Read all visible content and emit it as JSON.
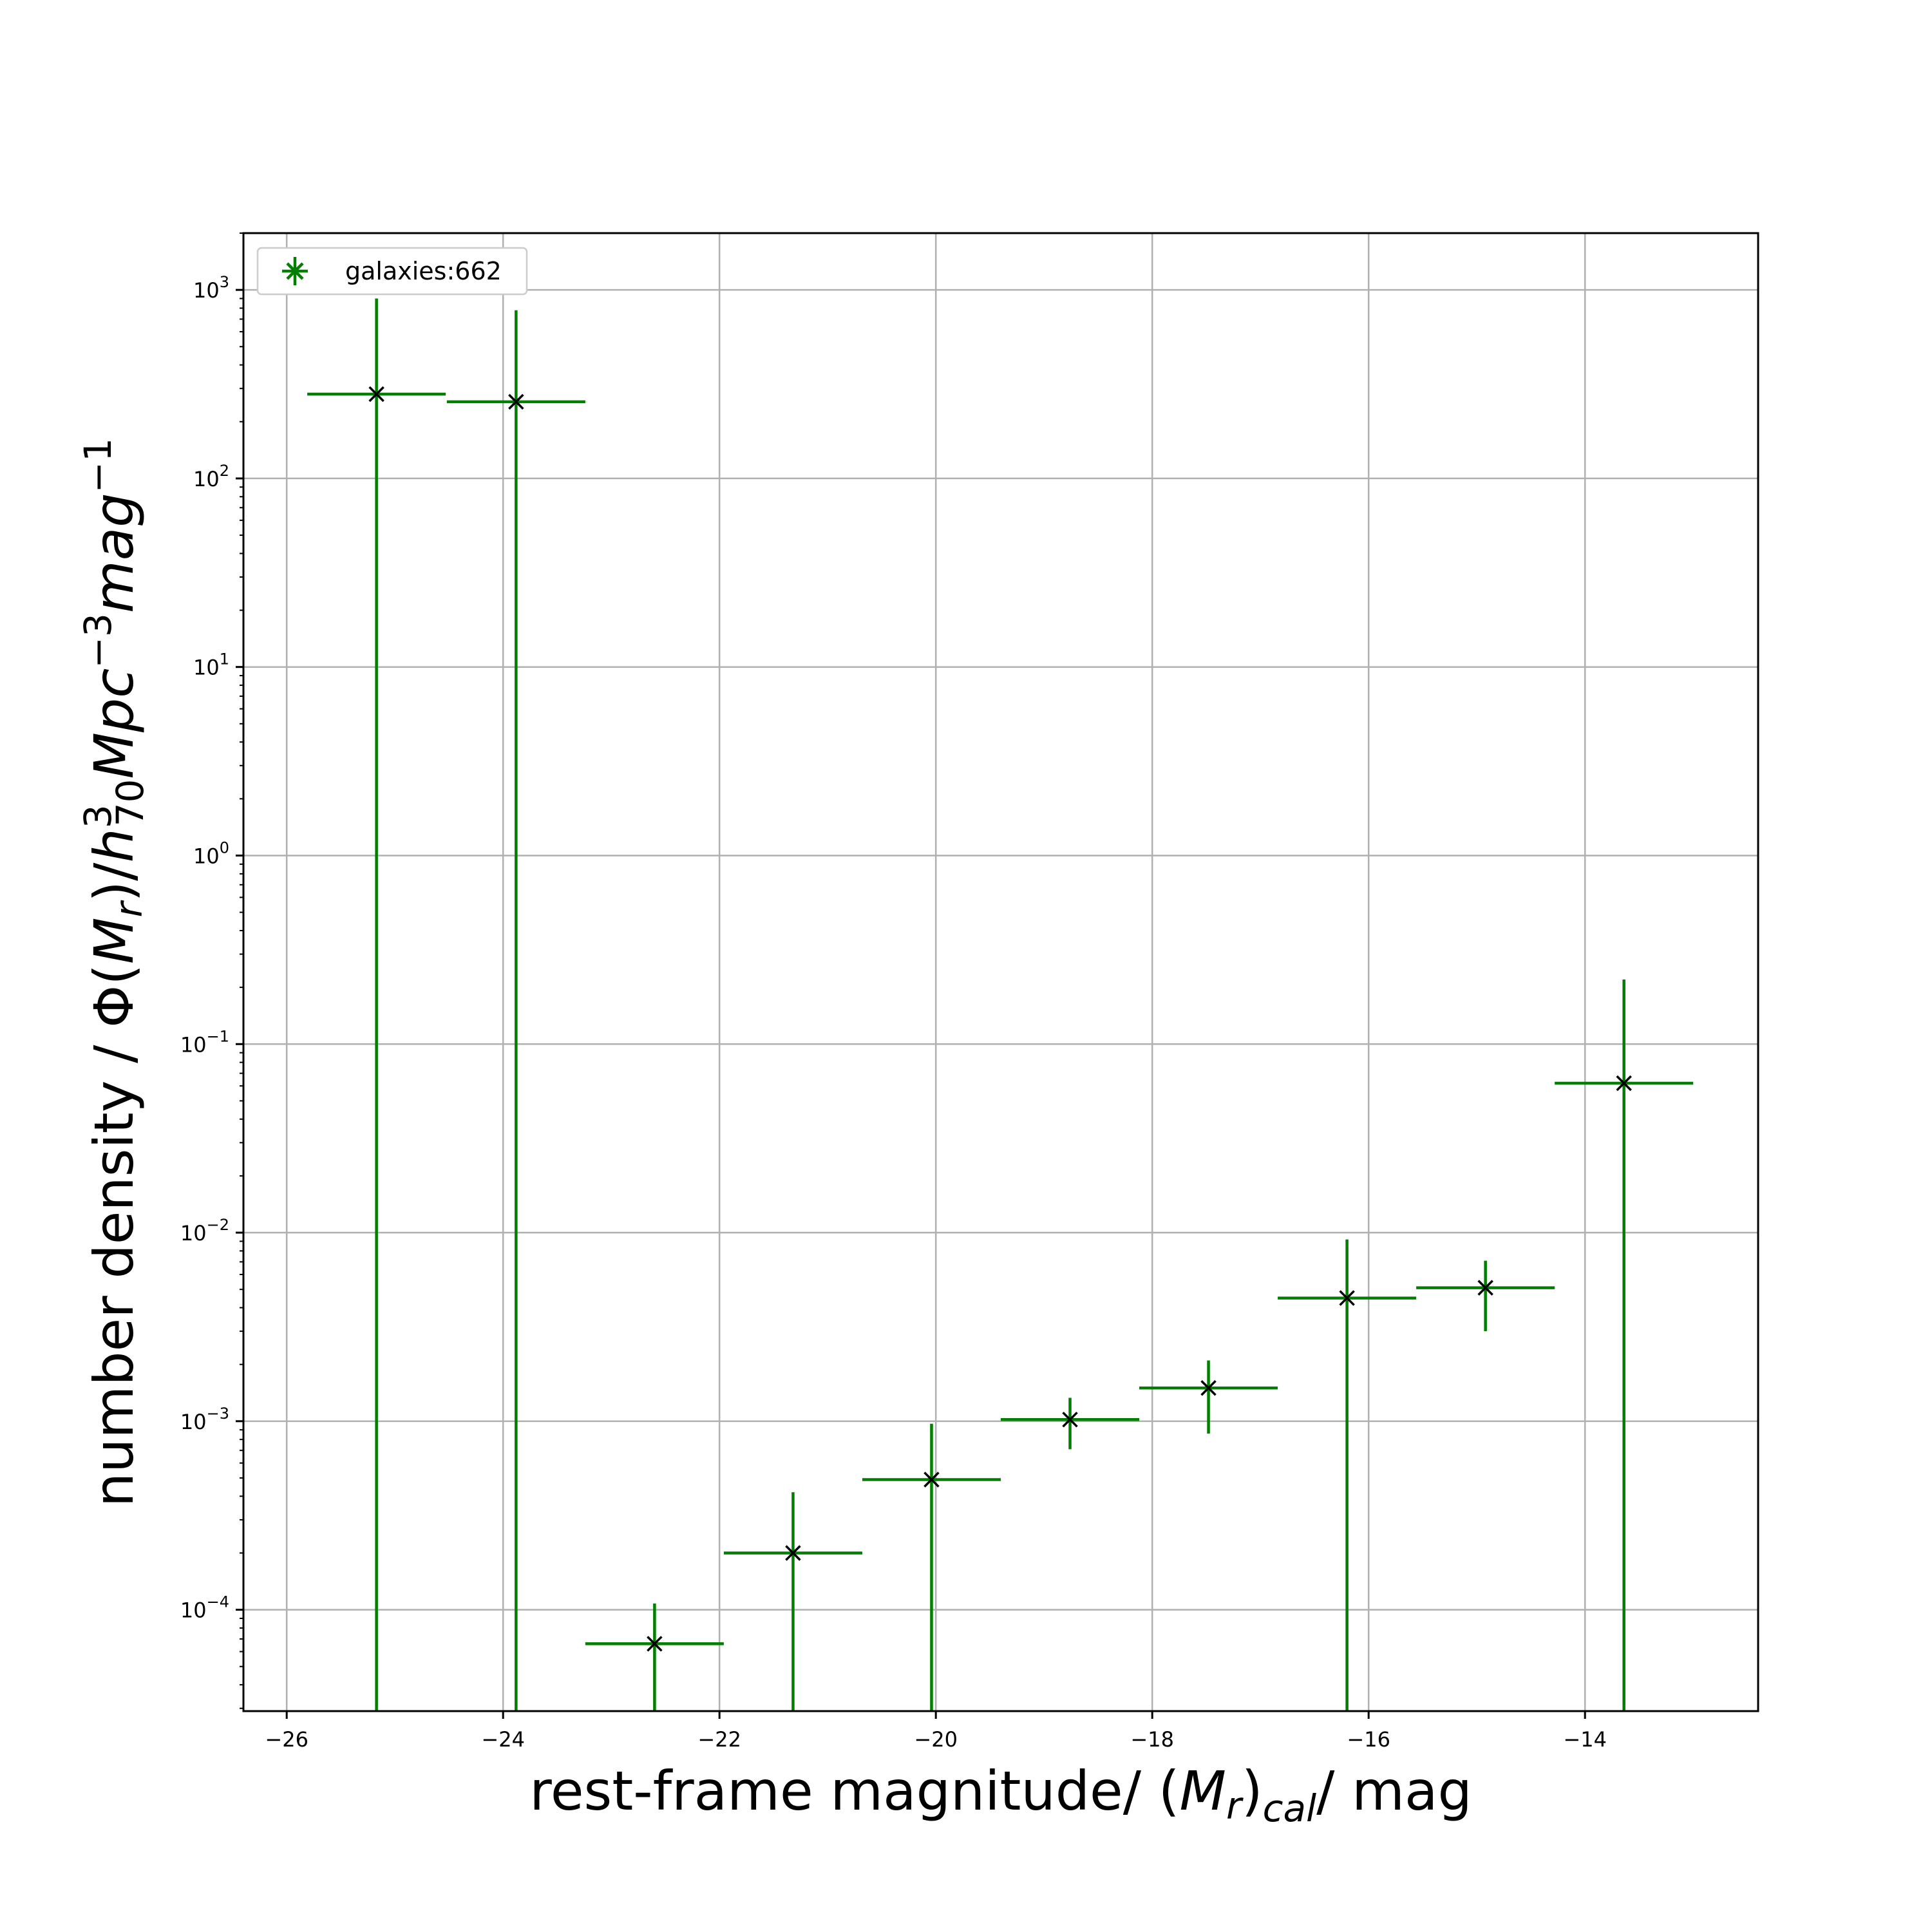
{
  "chart_data": {
    "type": "scatter",
    "subtype": "errorbar",
    "title": "",
    "xlabel": "rest-frame magnitude/ (M_r)_cal/ mag",
    "ylabel": "number density / Φ(M_r)/h_70^3 Mpc^-3 mag^-1",
    "xlim": [
      -26.4,
      -12.4
    ],
    "ylim": [
      2.9e-05,
      2000
    ],
    "yscale": "log",
    "grid": true,
    "legend_position": "upper-left",
    "x_ticks": [
      -26,
      -24,
      -22,
      -20,
      -18,
      -16,
      -14
    ],
    "x_tick_labels": [
      "−26",
      "−24",
      "−22",
      "−20",
      "−18",
      "−16",
      "−14"
    ],
    "y_ticks": [
      {
        "value": 0.0001,
        "mantissa": "10",
        "exponent": "−4"
      },
      {
        "value": 0.001,
        "mantissa": "10",
        "exponent": "−3"
      },
      {
        "value": 0.01,
        "mantissa": "10",
        "exponent": "−2"
      },
      {
        "value": 0.1,
        "mantissa": "10",
        "exponent": "−1"
      },
      {
        "value": 1,
        "mantissa": "10",
        "exponent": "0"
      },
      {
        "value": 10,
        "mantissa": "10",
        "exponent": "1"
      },
      {
        "value": 100,
        "mantissa": "10",
        "exponent": "2"
      },
      {
        "value": 1000,
        "mantissa": "10",
        "exponent": "3"
      }
    ],
    "series": [
      {
        "name": "galaxies:662",
        "color": "#007f00",
        "marker_color": "#000000",
        "bin_half_width": 0.64,
        "points": [
          {
            "x": -25.17,
            "y": 280,
            "y_low": 2.9e-05,
            "y_high": 900
          },
          {
            "x": -23.88,
            "y": 255,
            "y_low": 2.9e-05,
            "y_high": 780
          },
          {
            "x": -22.6,
            "y": 6.6e-05,
            "y_low": 2.5e-05,
            "y_high": 0.000108
          },
          {
            "x": -21.32,
            "y": 0.0002,
            "y_low": 2.9e-05,
            "y_high": 0.00042
          },
          {
            "x": -20.04,
            "y": 0.00049,
            "y_low": 2.9e-05,
            "y_high": 0.00097
          },
          {
            "x": -18.76,
            "y": 0.00102,
            "y_low": 0.00071,
            "y_high": 0.00133
          },
          {
            "x": -17.48,
            "y": 0.0015,
            "y_low": 0.00086,
            "y_high": 0.0021
          },
          {
            "x": -16.2,
            "y": 0.0045,
            "y_low": 2.9e-05,
            "y_high": 0.0092
          },
          {
            "x": -14.92,
            "y": 0.0051,
            "y_low": 0.003,
            "y_high": 0.0071
          },
          {
            "x": -13.64,
            "y": 0.062,
            "y_low": 2.9e-05,
            "y_high": 0.22
          }
        ]
      }
    ]
  },
  "legend": {
    "label": "galaxies:662"
  },
  "labels": {
    "x_prefix": "rest-frame magnitude/ (",
    "x_M": "M",
    "x_r": "r",
    "x_close": ")",
    "x_cal": "cal",
    "x_suffix": "/ mag",
    "y_prefix": "number density / Φ(",
    "y_M": "M",
    "y_r": "r",
    "y_slash": ")/",
    "y_h": "h",
    "y_h_sub": "70",
    "y_h_sup": "3",
    "y_Mpc": "Mpc",
    "y_Mpc_sup": "−3",
    "y_mag": "mag",
    "y_mag_sup": "−1"
  }
}
